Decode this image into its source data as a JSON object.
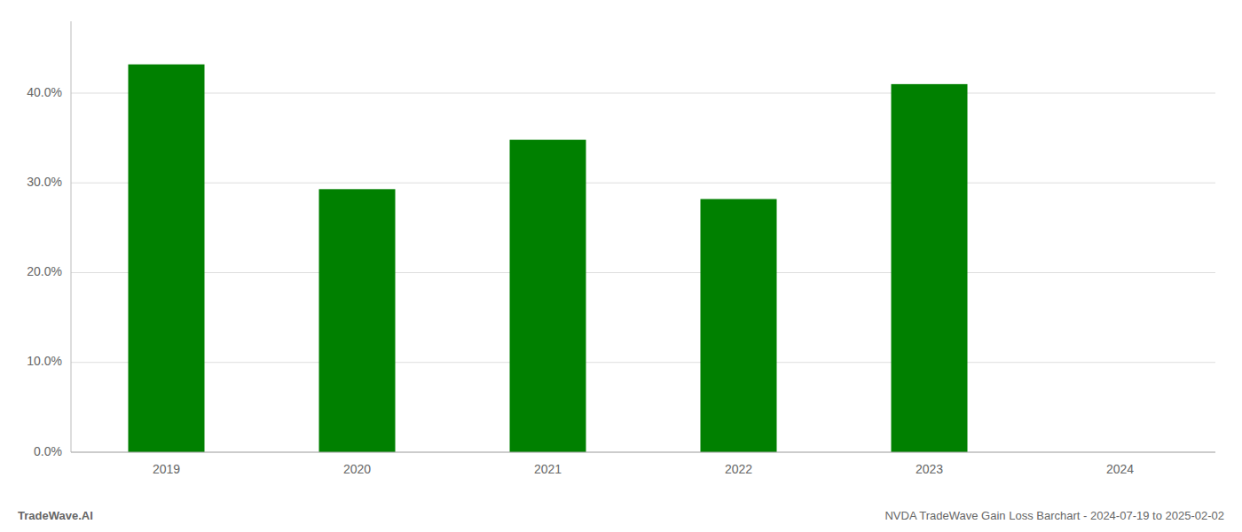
{
  "chart_data": {
    "type": "bar",
    "categories": [
      "2019",
      "2020",
      "2021",
      "2022",
      "2023",
      "2024"
    ],
    "values": [
      0.432,
      0.293,
      0.348,
      0.282,
      0.41,
      0.0
    ],
    "color": "#008000",
    "ylim": [
      0,
      0.48
    ],
    "yticks": [
      {
        "value": 0.0,
        "label": "0.0%"
      },
      {
        "value": 0.1,
        "label": "10.0%"
      },
      {
        "value": 0.2,
        "label": "20.0%"
      },
      {
        "value": 0.3,
        "label": "30.0%"
      },
      {
        "value": 0.4,
        "label": "40.0%"
      }
    ],
    "grid": true,
    "annotations": [
      "TradeWave.AI",
      "NVDA TradeWave Gain Loss Barchart - 2024-07-19 to 2025-02-02"
    ]
  }
}
